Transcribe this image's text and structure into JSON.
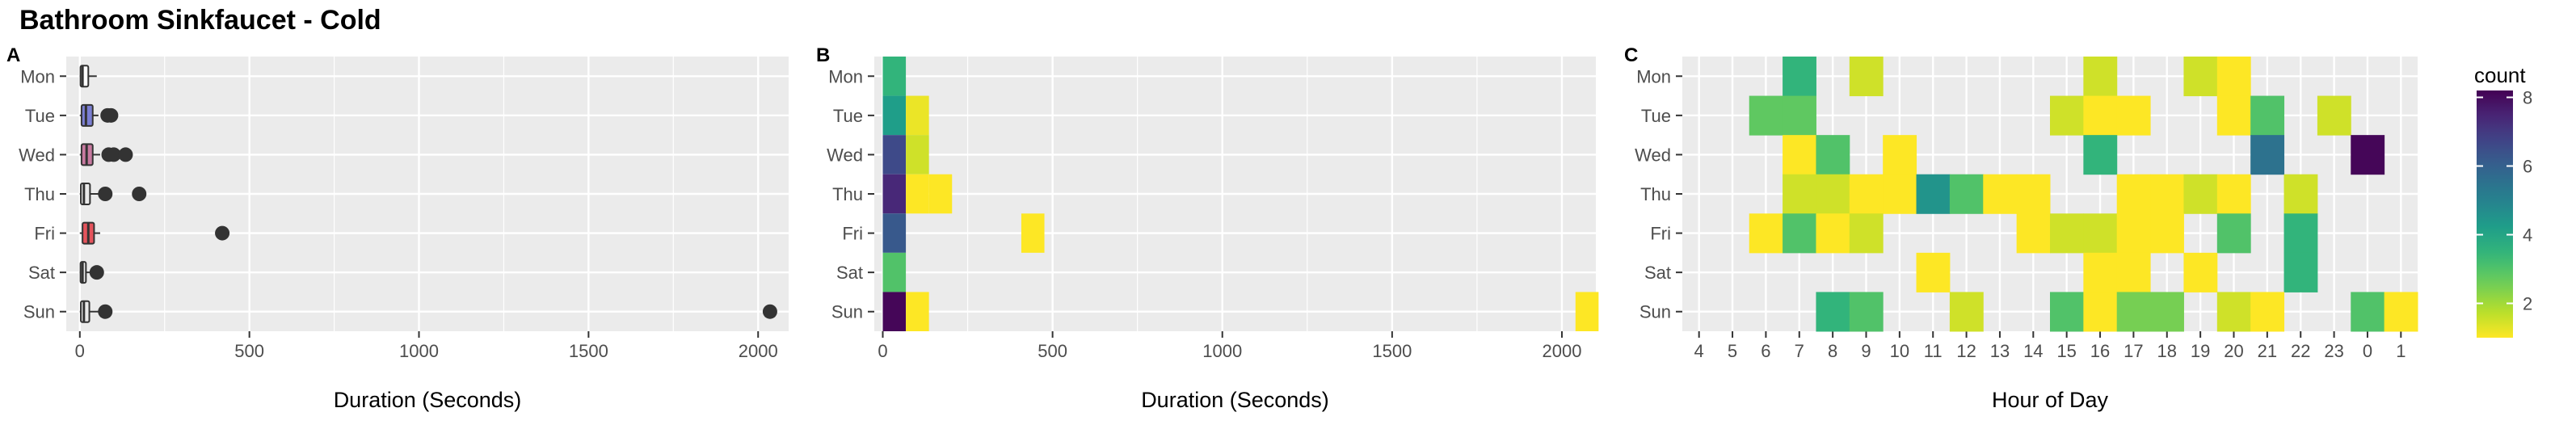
{
  "title": "Bathroom Sinkfaucet - Cold",
  "days": [
    "Mon",
    "Tue",
    "Wed",
    "Thu",
    "Fri",
    "Sat",
    "Sun"
  ],
  "colors": {
    "panel_bg": "#ebebeb",
    "grid": "#ffffff",
    "text_dark": "#000000",
    "text_tick": "#4d4d4d",
    "box_outline": "#333333",
    "box_fills": [
      "#ffffff",
      "#7b7fd3",
      "#c87aa0",
      "#eaeaea",
      "#e5545c",
      "#eaeaea",
      "#eaeaea"
    ]
  },
  "chart_data": [
    {
      "type": "boxplot",
      "panel_label": "A",
      "xlabel": "Duration (Seconds)",
      "xlim": [
        -40,
        2090
      ],
      "xticks": [
        0,
        500,
        1000,
        1500,
        2000
      ],
      "categories": [
        "Mon",
        "Tue",
        "Wed",
        "Thu",
        "Fri",
        "Sat",
        "Sun"
      ],
      "boxes": [
        {
          "day": "Mon",
          "min": 0,
          "q1": 2,
          "median": 8,
          "q3": 25,
          "max": 50,
          "outliers": []
        },
        {
          "day": "Tue",
          "min": 0,
          "q1": 5,
          "median": 18,
          "q3": 38,
          "max": 55,
          "outliers": [
            82,
            92
          ]
        },
        {
          "day": "Wed",
          "min": 0,
          "q1": 5,
          "median": 20,
          "q3": 38,
          "max": 60,
          "outliers": [
            85,
            100,
            135
          ]
        },
        {
          "day": "Thu",
          "min": 0,
          "q1": 3,
          "median": 12,
          "q3": 30,
          "max": 55,
          "outliers": [
            75,
            175
          ]
        },
        {
          "day": "Fri",
          "min": 0,
          "q1": 8,
          "median": 25,
          "q3": 42,
          "max": 60,
          "outliers": [
            420
          ]
        },
        {
          "day": "Sat",
          "min": 0,
          "q1": 2,
          "median": 8,
          "q3": 18,
          "max": 30,
          "outliers": [
            50
          ]
        },
        {
          "day": "Sun",
          "min": 0,
          "q1": 3,
          "median": 12,
          "q3": 28,
          "max": 55,
          "outliers": [
            75,
            2035
          ]
        }
      ]
    },
    {
      "type": "heatmap",
      "panel_label": "B",
      "xlabel": "Duration (Seconds)",
      "xlim": [
        -25,
        2100
      ],
      "xticks": [
        0,
        500,
        1000,
        1500,
        2000
      ],
      "categories": [
        "Mon",
        "Tue",
        "Wed",
        "Thu",
        "Fri",
        "Sat",
        "Sun"
      ],
      "bin_width": 68,
      "color_scale": "viridis",
      "cells": [
        {
          "day": "Mon",
          "x": 34,
          "count": 3.5
        },
        {
          "day": "Tue",
          "x": 34,
          "count": 4.2
        },
        {
          "day": "Tue",
          "x": 102,
          "count": 1.2
        },
        {
          "day": "Wed",
          "x": 34,
          "count": 6.6
        },
        {
          "day": "Wed",
          "x": 102,
          "count": 1.5
        },
        {
          "day": "Thu",
          "x": 34,
          "count": 7.4
        },
        {
          "day": "Thu",
          "x": 102,
          "count": 1.0
        },
        {
          "day": "Thu",
          "x": 170,
          "count": 1.0
        },
        {
          "day": "Fri",
          "x": 34,
          "count": 6.2
        },
        {
          "day": "Fri",
          "x": 442,
          "count": 1.0
        },
        {
          "day": "Sat",
          "x": 34,
          "count": 3.0
        },
        {
          "day": "Sun",
          "x": 34,
          "count": 8.1
        },
        {
          "day": "Sun",
          "x": 102,
          "count": 1.0
        },
        {
          "day": "Sun",
          "x": 2074,
          "count": 1.0
        }
      ]
    },
    {
      "type": "heatmap",
      "panel_label": "C",
      "xlabel": "Hour of Day",
      "categories_x": [
        "4",
        "5",
        "6",
        "7",
        "8",
        "9",
        "10",
        "11",
        "12",
        "13",
        "14",
        "15",
        "16",
        "17",
        "18",
        "19",
        "20",
        "21",
        "22",
        "23",
        "0",
        "1"
      ],
      "categories_y": [
        "Mon",
        "Tue",
        "Wed",
        "Thu",
        "Fri",
        "Sat",
        "Sun"
      ],
      "color_scale": "viridis",
      "cells": [
        {
          "day": "Mon",
          "hour": "7",
          "count": 3.5
        },
        {
          "day": "Mon",
          "hour": "9",
          "count": 1.5
        },
        {
          "day": "Mon",
          "hour": "16",
          "count": 1.5
        },
        {
          "day": "Mon",
          "hour": "19",
          "count": 1.5
        },
        {
          "day": "Mon",
          "hour": "20",
          "count": 1.0
        },
        {
          "day": "Tue",
          "hour": "6",
          "count": 2.8
        },
        {
          "day": "Tue",
          "hour": "7",
          "count": 2.8
        },
        {
          "day": "Tue",
          "hour": "15",
          "count": 1.5
        },
        {
          "day": "Tue",
          "hour": "16",
          "count": 1.0
        },
        {
          "day": "Tue",
          "hour": "17",
          "count": 1.0
        },
        {
          "day": "Tue",
          "hour": "20",
          "count": 1.0
        },
        {
          "day": "Tue",
          "hour": "21",
          "count": 3.0
        },
        {
          "day": "Tue",
          "hour": "23",
          "count": 1.5
        },
        {
          "day": "Wed",
          "hour": "7",
          "count": 1.0
        },
        {
          "day": "Wed",
          "hour": "8",
          "count": 3.0
        },
        {
          "day": "Wed",
          "hour": "10",
          "count": 1.0
        },
        {
          "day": "Wed",
          "hour": "16",
          "count": 3.5
        },
        {
          "day": "Wed",
          "hour": "21",
          "count": 5.5
        },
        {
          "day": "Wed",
          "hour": "0",
          "count": 8.1
        },
        {
          "day": "Thu",
          "hour": "7",
          "count": 1.5
        },
        {
          "day": "Thu",
          "hour": "8",
          "count": 1.5
        },
        {
          "day": "Thu",
          "hour": "9",
          "count": 1.0
        },
        {
          "day": "Thu",
          "hour": "10",
          "count": 1.0
        },
        {
          "day": "Thu",
          "hour": "11",
          "count": 4.5
        },
        {
          "day": "Thu",
          "hour": "12",
          "count": 3.0
        },
        {
          "day": "Thu",
          "hour": "13",
          "count": 1.0
        },
        {
          "day": "Thu",
          "hour": "14",
          "count": 1.0
        },
        {
          "day": "Thu",
          "hour": "17",
          "count": 1.0
        },
        {
          "day": "Thu",
          "hour": "18",
          "count": 1.0
        },
        {
          "day": "Thu",
          "hour": "19",
          "count": 1.5
        },
        {
          "day": "Thu",
          "hour": "20",
          "count": 1.0
        },
        {
          "day": "Thu",
          "hour": "22",
          "count": 1.5
        },
        {
          "day": "Fri",
          "hour": "6",
          "count": 1.0
        },
        {
          "day": "Fri",
          "hour": "7",
          "count": 3.0
        },
        {
          "day": "Fri",
          "hour": "8",
          "count": 1.0
        },
        {
          "day": "Fri",
          "hour": "9",
          "count": 1.5
        },
        {
          "day": "Fri",
          "hour": "14",
          "count": 1.0
        },
        {
          "day": "Fri",
          "hour": "15",
          "count": 1.5
        },
        {
          "day": "Fri",
          "hour": "16",
          "count": 1.5
        },
        {
          "day": "Fri",
          "hour": "17",
          "count": 1.0
        },
        {
          "day": "Fri",
          "hour": "18",
          "count": 1.0
        },
        {
          "day": "Fri",
          "hour": "20",
          "count": 3.0
        },
        {
          "day": "Fri",
          "hour": "22",
          "count": 3.5
        },
        {
          "day": "Sat",
          "hour": "11",
          "count": 1.0
        },
        {
          "day": "Sat",
          "hour": "16",
          "count": 1.0
        },
        {
          "day": "Sat",
          "hour": "17",
          "count": 1.0
        },
        {
          "day": "Sat",
          "hour": "19",
          "count": 1.0
        },
        {
          "day": "Sat",
          "hour": "22",
          "count": 3.5
        },
        {
          "day": "Sun",
          "hour": "8",
          "count": 3.5
        },
        {
          "day": "Sun",
          "hour": "9",
          "count": 3.0
        },
        {
          "day": "Sun",
          "hour": "12",
          "count": 1.5
        },
        {
          "day": "Sun",
          "hour": "15",
          "count": 3.0
        },
        {
          "day": "Sun",
          "hour": "16",
          "count": 1.0
        },
        {
          "day": "Sun",
          "hour": "17",
          "count": 2.5
        },
        {
          "day": "Sun",
          "hour": "18",
          "count": 2.5
        },
        {
          "day": "Sun",
          "hour": "20",
          "count": 1.5
        },
        {
          "day": "Sun",
          "hour": "21",
          "count": 1.0
        },
        {
          "day": "Sun",
          "hour": "0",
          "count": 3.0
        },
        {
          "day": "Sun",
          "hour": "1",
          "count": 1.0
        }
      ]
    }
  ],
  "legend": {
    "title": "count",
    "ticks": [
      "8",
      "6",
      "4",
      "2"
    ],
    "tick_values": [
      8,
      6,
      4,
      2
    ],
    "range": [
      1,
      8.2
    ]
  }
}
